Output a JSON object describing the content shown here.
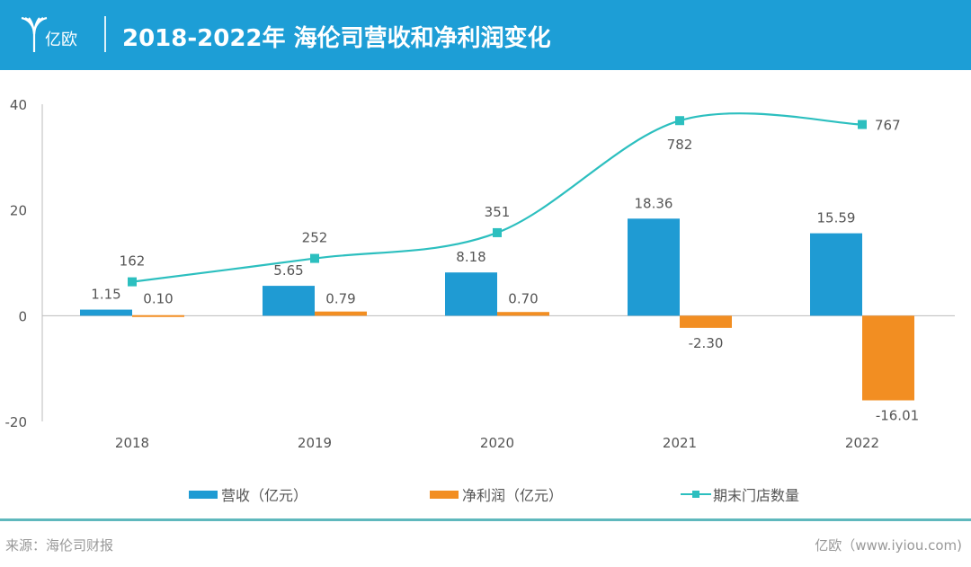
{
  "header": {
    "logo_text": "亿欧",
    "title": "2018-2022年 海伦司营收和净利润变化"
  },
  "colors": {
    "header": "#1d9ed6",
    "revenue": "#1f9bd3",
    "profit": "#f28e22",
    "stores": "#2cbfbf"
  },
  "chart_data": {
    "type": "bar",
    "categories": [
      "2018",
      "2019",
      "2020",
      "2021",
      "2022"
    ],
    "y_ticks": [
      "40",
      "20",
      "0",
      "-20"
    ],
    "ylim": [
      -20,
      40
    ],
    "grid": false,
    "legend_position": "bottom",
    "series": [
      {
        "name": "营收（亿元）",
        "type": "bar",
        "values": [
          1.15,
          5.65,
          8.18,
          18.36,
          15.59
        ],
        "labels": [
          "1.15",
          "5.65",
          "8.18",
          "18.36",
          "15.59"
        ]
      },
      {
        "name": "净利润（亿元）",
        "type": "bar",
        "values": [
          0.1,
          0.79,
          0.7,
          -2.3,
          -16.01
        ],
        "labels": [
          "0.10",
          "0.79",
          "0.70",
          "-2.30",
          "-16.01"
        ]
      },
      {
        "name": "期末门店数量",
        "type": "line",
        "axis": "secondary",
        "smooth": true,
        "values": [
          162,
          252,
          351,
          782,
          767
        ],
        "labels": [
          "162",
          "252",
          "351",
          "782",
          "767"
        ],
        "secondary_ylim": [
          -375,
          845
        ]
      }
    ]
  },
  "footer": {
    "source": "来源：海伦司财报",
    "credit": "亿欧（www.iyiou.com)"
  }
}
